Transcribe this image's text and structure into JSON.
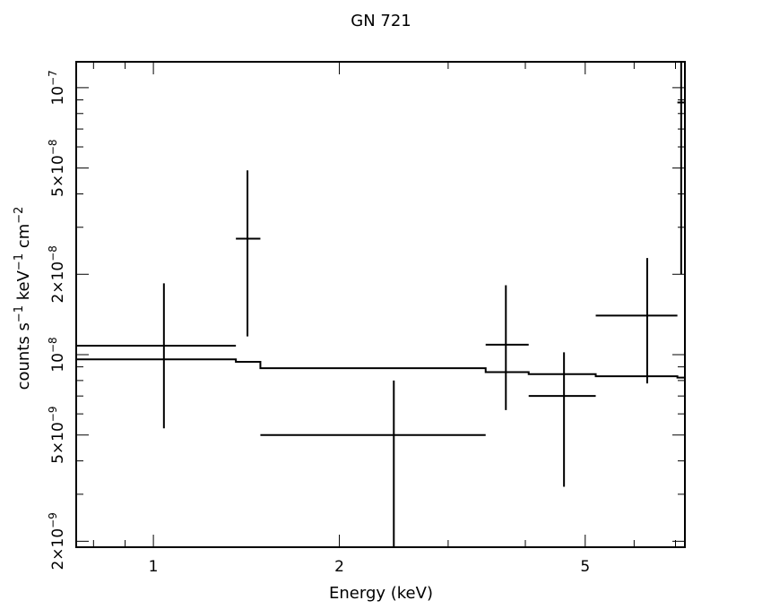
{
  "chart_data": {
    "type": "scatter",
    "title": "GN 721",
    "xlabel": "Energy (keV)",
    "ylabel": "counts s^-1 keV^-1 cm^-2",
    "x_scale": "log",
    "y_scale": "log",
    "xlim": [
      0.75,
      7.25
    ],
    "ylim": [
      1.9e-09,
      1.25e-07
    ],
    "x_ticks": [
      {
        "value": 1,
        "label": "1"
      },
      {
        "value": 2,
        "label": "2"
      },
      {
        "value": 5,
        "label": "5"
      }
    ],
    "y_ticks": [
      {
        "value": 2e-09,
        "mant": "2×10",
        "exp": "−9"
      },
      {
        "value": 5e-09,
        "mant": "5×10",
        "exp": "−9"
      },
      {
        "value": 1e-08,
        "mant": "10",
        "exp": "−8"
      },
      {
        "value": 2e-08,
        "mant": "2×10",
        "exp": "−8"
      },
      {
        "value": 5e-08,
        "mant": "5×10",
        "exp": "−8"
      },
      {
        "value": 1e-07,
        "mant": "10",
        "exp": "−7"
      }
    ],
    "grid": false,
    "series": [
      {
        "kind": "data_errorbars",
        "points": [
          {
            "x": 1.04,
            "xlo": 0.75,
            "xhi": 1.36,
            "y": 1.08e-08,
            "ylo": 5.3e-09,
            "yhi": 1.85e-08
          },
          {
            "x": 1.42,
            "xlo": 1.36,
            "xhi": 1.49,
            "y": 2.72e-08,
            "ylo": 1.17e-08,
            "yhi": 4.9e-08
          },
          {
            "x": 2.45,
            "xlo": 1.49,
            "xhi": 3.45,
            "y": 5e-09,
            "ylo": 1.9e-09,
            "yhi": 8e-09
          },
          {
            "x": 3.72,
            "xlo": 3.45,
            "xhi": 4.05,
            "y": 1.09e-08,
            "ylo": 6.2e-09,
            "yhi": 1.82e-08
          },
          {
            "x": 4.62,
            "xlo": 4.05,
            "xhi": 5.2,
            "y": 7e-09,
            "ylo": 3.2e-09,
            "yhi": 1.02e-08
          },
          {
            "x": 6.3,
            "xlo": 5.2,
            "xhi": 7.05,
            "y": 1.4e-08,
            "ylo": 7.8e-09,
            "yhi": 2.3e-08
          },
          {
            "x": 7.15,
            "xlo": 7.05,
            "xhi": 7.25,
            "y": 8.8e-08,
            "ylo": 2e-08,
            "yhi": 1.25e-07
          }
        ]
      },
      {
        "kind": "model_step",
        "bins": [
          {
            "xlo": 0.75,
            "xhi": 1.36,
            "y": 9.6e-09
          },
          {
            "xlo": 1.36,
            "xhi": 1.49,
            "y": 9.4e-09
          },
          {
            "xlo": 1.49,
            "xhi": 3.45,
            "y": 8.9e-09
          },
          {
            "xlo": 3.45,
            "xhi": 4.05,
            "y": 8.6e-09
          },
          {
            "xlo": 4.05,
            "xhi": 5.2,
            "y": 8.45e-09
          },
          {
            "xlo": 5.2,
            "xhi": 7.05,
            "y": 8.3e-09
          },
          {
            "xlo": 7.05,
            "xhi": 7.25,
            "y": 8.2e-09
          }
        ]
      }
    ]
  }
}
